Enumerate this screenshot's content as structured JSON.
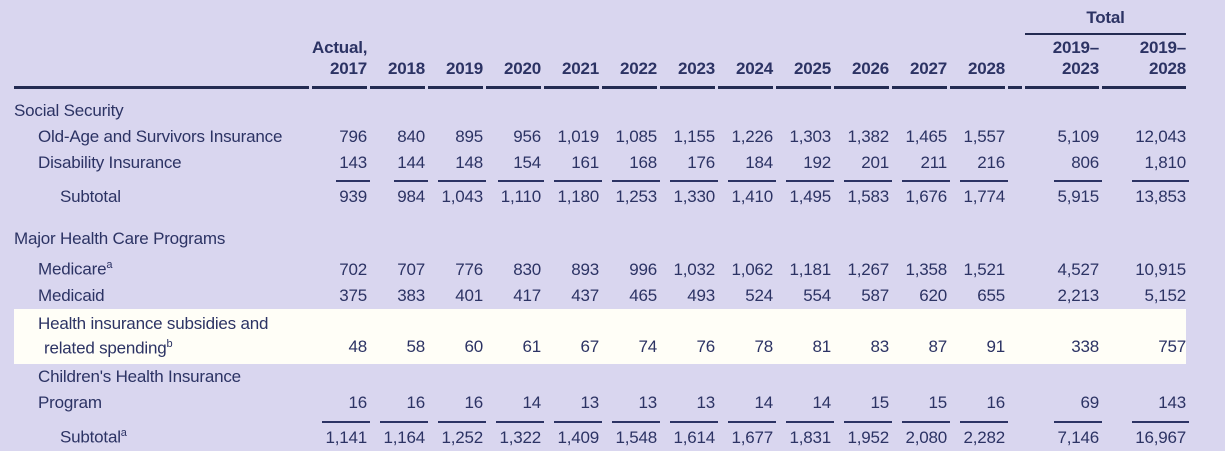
{
  "header": {
    "total": "Total",
    "actual": "Actual,",
    "years": [
      "2017",
      "2018",
      "2019",
      "2020",
      "2021",
      "2022",
      "2023",
      "2024",
      "2025",
      "2026",
      "2027",
      "2028"
    ],
    "ranges": [
      {
        "l1": "2019–",
        "l2": "2023"
      },
      {
        "l1": "2019–",
        "l2": "2028"
      }
    ]
  },
  "sections": [
    {
      "title": "Social Security",
      "rows": [
        {
          "label": "Old-Age and Survivors Insurance",
          "values": [
            "796",
            "840",
            "895",
            "956",
            "1,019",
            "1,085",
            "1,155",
            "1,226",
            "1,303",
            "1,382",
            "1,465",
            "1,557",
            "5,109",
            "12,043"
          ]
        },
        {
          "label": "Disability Insurance",
          "values": [
            "143",
            "144",
            "148",
            "154",
            "161",
            "168",
            "176",
            "184",
            "192",
            "201",
            "211",
            "216",
            "806",
            "1,810"
          ]
        },
        {
          "label": "Subtotal",
          "values": [
            "939",
            "984",
            "1,043",
            "1,110",
            "1,180",
            "1,253",
            "1,330",
            "1,410",
            "1,495",
            "1,583",
            "1,676",
            "1,774",
            "5,915",
            "13,853"
          ]
        }
      ]
    },
    {
      "title": "Major Health Care Programs",
      "rows": [
        {
          "label": "Medicare",
          "sup": "a",
          "values": [
            "702",
            "707",
            "776",
            "830",
            "893",
            "996",
            "1,032",
            "1,062",
            "1,181",
            "1,267",
            "1,358",
            "1,521",
            "4,527",
            "10,915"
          ]
        },
        {
          "label": "Medicaid",
          "values": [
            "375",
            "383",
            "401",
            "417",
            "437",
            "465",
            "493",
            "524",
            "554",
            "587",
            "620",
            "655",
            "2,213",
            "5,152"
          ]
        },
        {
          "label": "Health insurance subsidies and",
          "label2": "related spending",
          "sup": "b",
          "values": [
            "48",
            "58",
            "60",
            "61",
            "67",
            "74",
            "76",
            "78",
            "81",
            "83",
            "87",
            "91",
            "338",
            "757"
          ]
        },
        {
          "label": "Children's Health Insurance Program",
          "values": [
            "16",
            "16",
            "16",
            "14",
            "13",
            "13",
            "13",
            "14",
            "14",
            "15",
            "15",
            "16",
            "69",
            "143"
          ]
        },
        {
          "label": "Subtotal",
          "sup": "a",
          "values": [
            "1,141",
            "1,164",
            "1,252",
            "1,322",
            "1,409",
            "1,548",
            "1,614",
            "1,677",
            "1,831",
            "1,952",
            "2,080",
            "2,282",
            "7,146",
            "16,967"
          ]
        }
      ]
    }
  ],
  "colors": {
    "background": "#d9d6ef",
    "highlight_band": "#fffef7",
    "text": "#2c3364",
    "rule": "#232b52"
  }
}
